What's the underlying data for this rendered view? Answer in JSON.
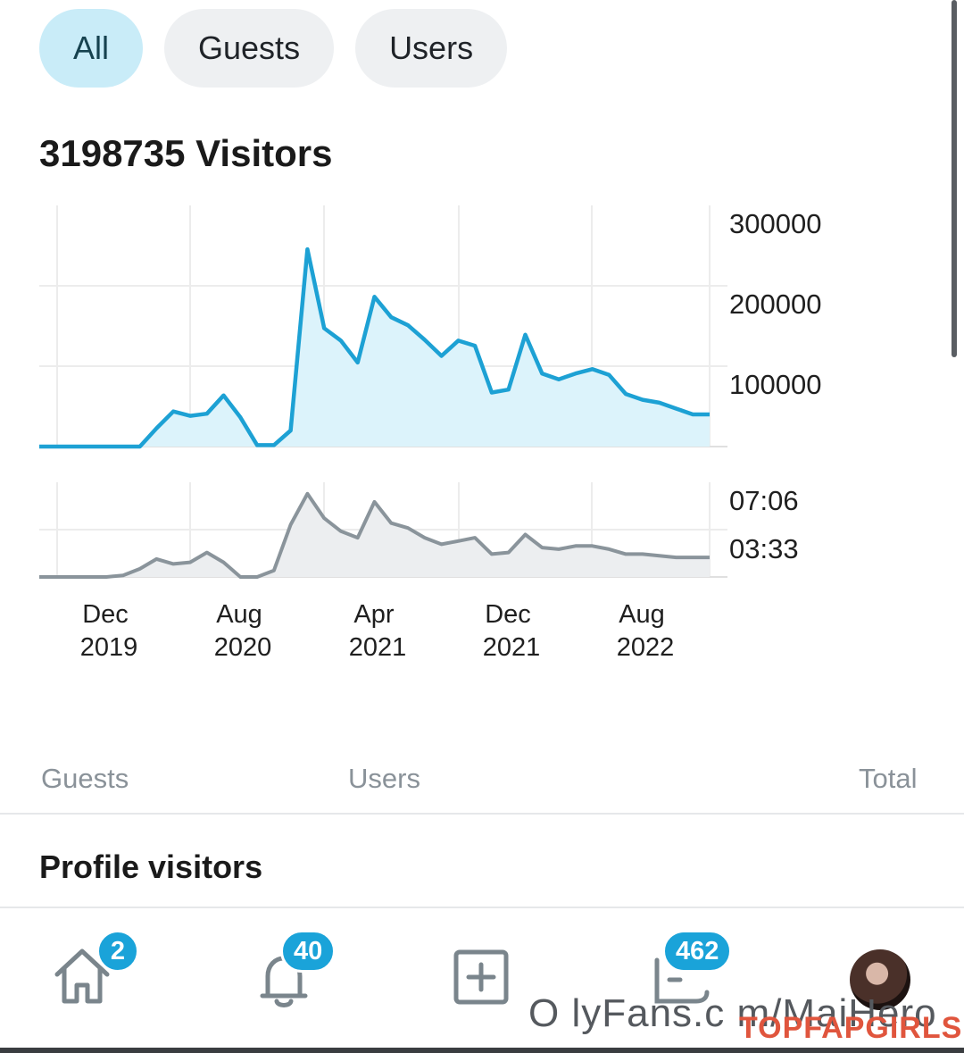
{
  "tabs": [
    {
      "label": "All",
      "active": true
    },
    {
      "label": "Guests",
      "active": false
    },
    {
      "label": "Users",
      "active": false
    }
  ],
  "visitors_title": "3198735 Visitors",
  "chart_data": [
    {
      "type": "area",
      "title": "",
      "series": [
        {
          "color": "#1da1d4",
          "x": [
            "2019-09",
            "2019-10",
            "2019-11",
            "2019-12",
            "2020-01",
            "2020-02",
            "2020-03",
            "2020-04",
            "2020-05",
            "2020-06",
            "2020-07",
            "2020-08",
            "2020-09",
            "2020-10",
            "2020-11",
            "2020-12",
            "2021-01",
            "2021-02",
            "2021-03",
            "2021-04",
            "2021-05",
            "2021-06",
            "2021-07",
            "2021-08",
            "2021-09",
            "2021-10",
            "2021-11",
            "2021-12",
            "2021-13",
            "2022-01",
            "2022-02",
            "2022-03",
            "2022-04",
            "2022-05",
            "2022-06",
            "2022-07",
            "2022-08",
            "2022-09",
            "2022-10",
            "2022-11",
            "2022-12"
          ],
          "values": [
            0,
            0,
            0,
            0,
            0,
            0,
            0,
            25000,
            48000,
            42000,
            45000,
            70000,
            40000,
            2000,
            2000,
            22000,
            270000,
            162000,
            145000,
            115000,
            205000,
            177000,
            166000,
            146000,
            124000,
            145000,
            138000,
            74000,
            78000,
            153000,
            100000,
            92000,
            100000,
            106000,
            98000,
            72000,
            64000,
            60000,
            52000,
            44000,
            44000
          ]
        }
      ],
      "y_ticks": [
        "300000",
        "200000",
        "100000"
      ],
      "ylim": [
        0,
        330000
      ],
      "grid": true
    },
    {
      "type": "area",
      "title": "",
      "series": [
        {
          "color": "#8a949b",
          "x": [
            "2019-09",
            "2019-10",
            "2019-11",
            "2019-12",
            "2020-01",
            "2020-02",
            "2020-03",
            "2020-04",
            "2020-05",
            "2020-06",
            "2020-07",
            "2020-08",
            "2020-09",
            "2020-10",
            "2020-11",
            "2020-12",
            "2021-01",
            "2021-02",
            "2021-03",
            "2021-04",
            "2021-05",
            "2021-06",
            "2021-07",
            "2021-08",
            "2021-09",
            "2021-10",
            "2021-11",
            "2021-12",
            "2021-13",
            "2022-01",
            "2022-02",
            "2022-03",
            "2022-04",
            "2022-05",
            "2022-06",
            "2022-07",
            "2022-08",
            "2022-09",
            "2022-10",
            "2022-11",
            "2022-12"
          ],
          "values": [
            0,
            0,
            0,
            0,
            0,
            5,
            25,
            55,
            40,
            45,
            75,
            45,
            0,
            0,
            20,
            160,
            255,
            180,
            140,
            120,
            230,
            165,
            150,
            120,
            100,
            110,
            120,
            70,
            75,
            130,
            90,
            85,
            95,
            95,
            85,
            70,
            70,
            65,
            60,
            60,
            60
          ]
        }
      ],
      "y_ticks": [
        "07:06",
        "03:33"
      ],
      "ylim": [
        0,
        290
      ],
      "grid": true
    }
  ],
  "x_ticks": [
    {
      "month": "Dec",
      "year": "2019"
    },
    {
      "month": "Aug",
      "year": "2020"
    },
    {
      "month": "Apr",
      "year": "2021"
    },
    {
      "month": "Dec",
      "year": "2021"
    },
    {
      "month": "Aug",
      "year": "2022"
    }
  ],
  "legend": {
    "guests": "Guests",
    "users": "Users",
    "total": "Total"
  },
  "section_title": "Profile visitors",
  "nav": {
    "home_badge": "2",
    "notifications_badge": "40",
    "messages_badge": "462"
  },
  "watermark_text": "O lyFans.c m/MaiHero",
  "watermark_brand": "TOPFAPGIRLS"
}
